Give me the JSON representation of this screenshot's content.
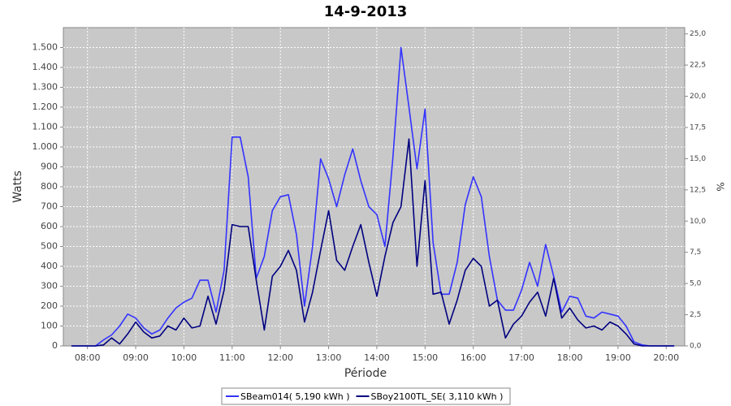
{
  "chart_data": {
    "type": "line",
    "title": "14-9-2013",
    "xlabel": "Période",
    "ylabel": "Watts",
    "y2label": "%",
    "x": [
      "07:40",
      "07:50",
      "08:00",
      "08:10",
      "08:20",
      "08:30",
      "08:40",
      "08:50",
      "09:00",
      "09:10",
      "09:20",
      "09:30",
      "09:40",
      "09:50",
      "10:00",
      "10:10",
      "10:20",
      "10:30",
      "10:40",
      "10:50",
      "11:00",
      "11:10",
      "11:20",
      "11:30",
      "11:40",
      "11:50",
      "12:00",
      "12:10",
      "12:20",
      "12:30",
      "12:40",
      "12:50",
      "13:00",
      "13:10",
      "13:20",
      "13:30",
      "13:40",
      "13:50",
      "14:00",
      "14:10",
      "14:20",
      "14:30",
      "14:40",
      "14:50",
      "15:00",
      "15:10",
      "15:20",
      "15:30",
      "15:40",
      "15:50",
      "16:00",
      "16:10",
      "16:20",
      "16:30",
      "16:40",
      "16:50",
      "17:00",
      "17:10",
      "17:20",
      "17:30",
      "17:40",
      "17:50",
      "18:00",
      "18:10",
      "18:20",
      "18:30",
      "18:40",
      "18:50",
      "19:00",
      "19:10",
      "19:20",
      "19:30",
      "19:40",
      "19:50",
      "20:00",
      "20:10"
    ],
    "series": [
      {
        "name": "SBeam014( 5,190 kWh )",
        "color": "#3333ff",
        "values": [
          0,
          0,
          0,
          0,
          30,
          55,
          100,
          160,
          140,
          90,
          60,
          80,
          140,
          190,
          220,
          240,
          330,
          330,
          170,
          380,
          1050,
          1050,
          850,
          340,
          450,
          680,
          750,
          760,
          560,
          200,
          500,
          940,
          840,
          700,
          860,
          990,
          830,
          700,
          660,
          500,
          950,
          1500,
          1200,
          890,
          1190,
          520,
          260,
          260,
          420,
          710,
          850,
          750,
          450,
          230,
          180,
          180,
          280,
          420,
          300,
          510,
          350,
          170,
          250,
          240,
          150,
          140,
          170,
          160,
          150,
          100,
          20,
          5,
          0,
          0,
          0,
          0
        ]
      },
      {
        "name": "SBoy2100TL_SE( 3,110 kWh )",
        "color": "#000080",
        "values": [
          0,
          0,
          0,
          0,
          5,
          40,
          10,
          60,
          120,
          70,
          40,
          50,
          100,
          80,
          140,
          90,
          100,
          250,
          110,
          280,
          610,
          600,
          600,
          330,
          80,
          350,
          400,
          480,
          380,
          120,
          270,
          480,
          680,
          430,
          380,
          500,
          610,
          420,
          250,
          450,
          620,
          700,
          1040,
          400,
          830,
          260,
          270,
          110,
          230,
          380,
          440,
          400,
          200,
          230,
          40,
          110,
          150,
          220,
          270,
          150,
          340,
          140,
          190,
          130,
          90,
          100,
          80,
          120,
          100,
          60,
          10,
          0,
          0,
          0,
          0,
          0
        ]
      }
    ],
    "xlim": [
      "07:30",
      "20:23"
    ],
    "xticks": [
      "08:00",
      "09:00",
      "10:00",
      "11:00",
      "12:00",
      "13:00",
      "14:00",
      "15:00",
      "16:00",
      "17:00",
      "18:00",
      "19:00",
      "20:00"
    ],
    "ylim": [
      0,
      1600
    ],
    "yticks": [
      0,
      100,
      200,
      300,
      400,
      500,
      600,
      700,
      800,
      900,
      {
        "value": 1000,
        "label": "1.000"
      },
      {
        "value": 1100,
        "label": "1.100"
      },
      {
        "value": 1200,
        "label": "1.200"
      },
      {
        "value": 1300,
        "label": "1.300"
      },
      {
        "value": 1400,
        "label": "1.400"
      },
      {
        "value": 1500,
        "label": "1.500"
      }
    ],
    "y2lim": [
      0,
      25.5
    ],
    "y2ticks": [
      {
        "value": 0,
        "label": "0,0"
      },
      {
        "value": 2.5,
        "label": "2,5"
      },
      {
        "value": 5,
        "label": "5,0"
      },
      {
        "value": 7.5,
        "label": "7,5"
      },
      {
        "value": 10,
        "label": "10,0"
      },
      {
        "value": 12.5,
        "label": "12,5"
      },
      {
        "value": 15,
        "label": "15,0"
      },
      {
        "value": 17.5,
        "label": "17,5"
      },
      {
        "value": 20,
        "label": "20,0"
      },
      {
        "value": 22.5,
        "label": "22,5"
      },
      {
        "value": 25,
        "label": "25,0"
      }
    ],
    "grid": true,
    "legend": "bottom"
  }
}
